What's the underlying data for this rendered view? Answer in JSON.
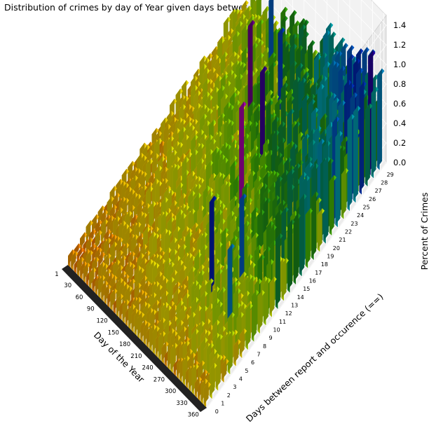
{
  "chart_data": {
    "type": "bar3d",
    "title": "Distribution of crimes by day of Year given days between occurence and report (==)",
    "xlabel": "Day of the Year",
    "ylabel": "Days between report and occurence (==)",
    "zlabel": "Percent of Crimes",
    "x_ticks": [
      "1",
      "30",
      "60",
      "90",
      "120",
      "150",
      "180",
      "210",
      "240",
      "270",
      "300",
      "330",
      "360"
    ],
    "y_ticks": [
      "0",
      "1",
      "2",
      "3",
      "4",
      "5",
      "6",
      "7",
      "8",
      "9",
      "10",
      "11",
      "12",
      "13",
      "14",
      "15",
      "16",
      "17",
      "18",
      "19",
      "20",
      "21",
      "22",
      "23",
      "24",
      "25",
      "26",
      "27",
      "28",
      "29"
    ],
    "z_ticks": [
      "0.0",
      "0.2",
      "0.4",
      "0.6",
      "0.8",
      "1.0",
      "1.2",
      "1.4"
    ],
    "xlim": [
      1,
      366
    ],
    "ylim": [
      0,
      30
    ],
    "zlim": [
      0,
      1.5
    ],
    "colormap": [
      "#ff4400",
      "#f5b800",
      "#e8e000",
      "#b0e000",
      "#4cc000",
      "#1a8a1a",
      "#008a6a",
      "#00a0b0",
      "#0050c0",
      "#0000a0",
      "#800080",
      "#c000c0"
    ],
    "grid": true,
    "peaks": [
      {
        "day": 240,
        "lag": 14,
        "percent": 1.35
      },
      {
        "day": 270,
        "lag": 7,
        "percent": 1.1
      },
      {
        "day": 210,
        "lag": 20,
        "percent": 1.2
      },
      {
        "day": 300,
        "lag": 10,
        "percent": 1.0
      },
      {
        "day": 180,
        "lag": 25,
        "percent": 1.05
      },
      {
        "day": 150,
        "lag": 22,
        "percent": 1.25
      },
      {
        "day": 120,
        "lag": 27,
        "percent": 1.0
      },
      {
        "day": 330,
        "lag": 6,
        "percent": 0.95
      }
    ]
  }
}
